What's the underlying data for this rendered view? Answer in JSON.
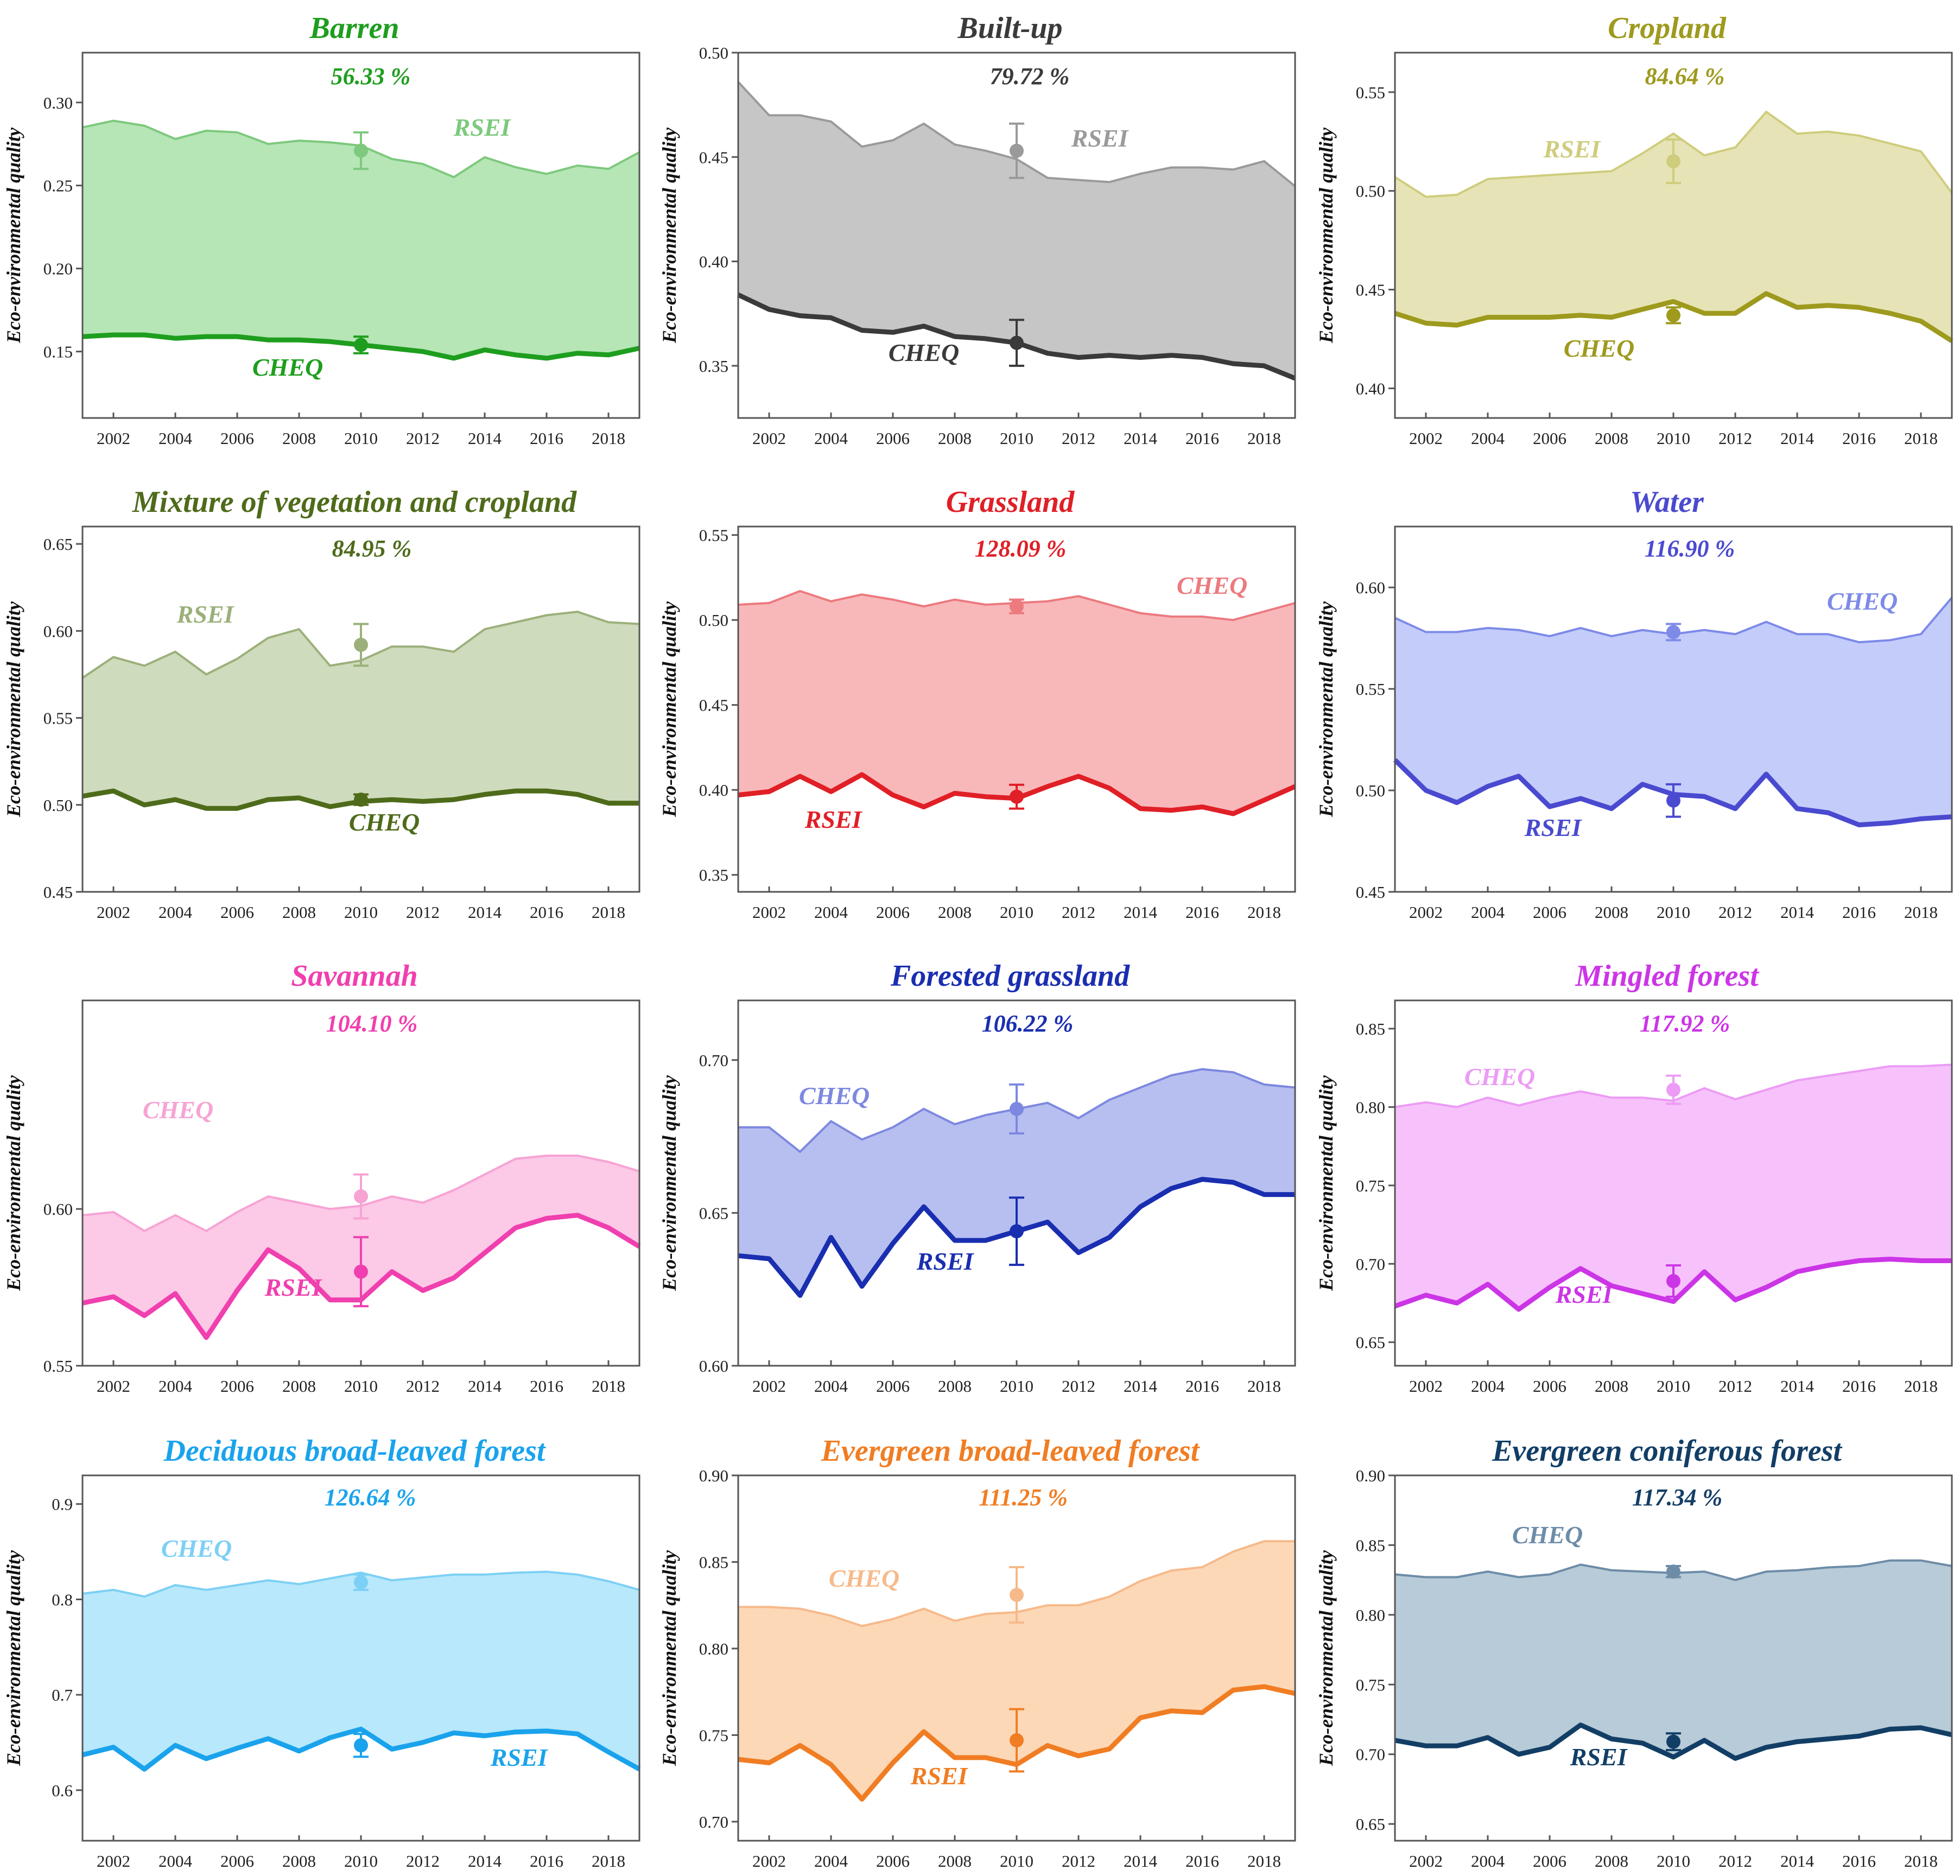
{
  "figure": {
    "ylabel": "Eco-environmental quality",
    "years": [
      2001,
      2002,
      2003,
      2004,
      2005,
      2006,
      2007,
      2008,
      2009,
      2010,
      2011,
      2012,
      2013,
      2014,
      2015,
      2016,
      2017,
      2018,
      2019
    ],
    "x_ticks": [
      "2002",
      "2004",
      "2006",
      "2008",
      "2010",
      "2012",
      "2014",
      "2016",
      "2018"
    ]
  },
  "chart_data": [
    {
      "type": "area",
      "title": "Barren",
      "percent": "56.33 %",
      "color": "#1e9e1e",
      "light": "#7dc97d",
      "fill": "#b6e5b6",
      "ylim": [
        0.11,
        0.33
      ],
      "yticks": [
        "0.15",
        "0.20",
        "0.25",
        "0.30"
      ],
      "series": [
        {
          "name": "RSEI",
          "role": "upper",
          "values": [
            0.285,
            0.289,
            0.286,
            0.278,
            0.283,
            0.282,
            0.275,
            0.277,
            0.276,
            0.274,
            0.266,
            0.263,
            0.255,
            0.267,
            0.261,
            0.257,
            0.262,
            0.26,
            0.27
          ]
        },
        {
          "name": "CHEQ",
          "role": "lower",
          "values": [
            0.159,
            0.16,
            0.16,
            0.158,
            0.159,
            0.159,
            0.157,
            0.157,
            0.156,
            0.154,
            0.152,
            0.15,
            0.146,
            0.151,
            0.148,
            0.146,
            0.149,
            0.148,
            0.152
          ]
        }
      ],
      "markers": [
        {
          "series": "RSEI",
          "year": 2010,
          "mean": 0.271,
          "err": 0.011
        },
        {
          "series": "CHEQ",
          "year": 2010,
          "mean": 0.154,
          "err": 0.005
        }
      ]
    },
    {
      "type": "area",
      "title": "Built-up",
      "percent": "79.72 %",
      "color": "#3a3a3a",
      "light": "#9a9a9a",
      "fill": "#c6c6c6",
      "ylim": [
        0.325,
        0.5
      ],
      "yticks": [
        "0.35",
        "0.40",
        "0.45",
        "0.50"
      ],
      "series": [
        {
          "name": "RSEI",
          "role": "upper",
          "values": [
            0.486,
            0.47,
            0.47,
            0.467,
            0.455,
            0.458,
            0.466,
            0.456,
            0.453,
            0.449,
            0.44,
            0.439,
            0.438,
            0.442,
            0.445,
            0.445,
            0.444,
            0.448,
            0.436
          ]
        },
        {
          "name": "CHEQ",
          "role": "lower",
          "values": [
            0.384,
            0.377,
            0.374,
            0.373,
            0.367,
            0.366,
            0.369,
            0.364,
            0.363,
            0.361,
            0.356,
            0.354,
            0.355,
            0.354,
            0.355,
            0.354,
            0.351,
            0.35,
            0.344
          ]
        }
      ],
      "markers": [
        {
          "series": "RSEI",
          "year": 2010,
          "mean": 0.453,
          "err": 0.013
        },
        {
          "series": "CHEQ",
          "year": 2010,
          "mean": 0.361,
          "err": 0.011
        }
      ]
    },
    {
      "type": "area",
      "title": "Cropland",
      "percent": "84.64 %",
      "color": "#9e9a1e",
      "light": "#cfcc7d",
      "fill": "#e6e4b6",
      "ylim": [
        0.385,
        0.57
      ],
      "yticks": [
        "0.40",
        "0.45",
        "0.50",
        "0.55"
      ],
      "series": [
        {
          "name": "RSEI",
          "role": "upper",
          "values": [
            0.507,
            0.497,
            0.498,
            0.506,
            0.507,
            0.508,
            0.509,
            0.51,
            0.519,
            0.529,
            0.518,
            0.522,
            0.54,
            0.529,
            0.53,
            0.528,
            0.524,
            0.52,
            0.499
          ]
        },
        {
          "name": "CHEQ",
          "role": "lower",
          "values": [
            0.438,
            0.433,
            0.432,
            0.436,
            0.436,
            0.436,
            0.437,
            0.436,
            0.44,
            0.444,
            0.438,
            0.438,
            0.448,
            0.441,
            0.442,
            0.441,
            0.438,
            0.434,
            0.424
          ]
        }
      ],
      "markers": [
        {
          "series": "RSEI",
          "year": 2010,
          "mean": 0.515,
          "err": 0.011
        },
        {
          "series": "CHEQ",
          "year": 2010,
          "mean": 0.437,
          "err": 0.004
        }
      ]
    },
    {
      "type": "area",
      "title": "Mixture of vegetation and cropland",
      "percent": "84.95 %",
      "color": "#4e6b1a",
      "light": "#9bb07a",
      "fill": "#cfdbbd",
      "ylim": [
        0.45,
        0.66
      ],
      "yticks": [
        "0.45",
        "0.50",
        "0.55",
        "0.60",
        "0.65"
      ],
      "series": [
        {
          "name": "RSEI",
          "role": "upper",
          "values": [
            0.573,
            0.585,
            0.58,
            0.588,
            0.575,
            0.584,
            0.596,
            0.601,
            0.58,
            0.583,
            0.591,
            0.591,
            0.588,
            0.601,
            0.605,
            0.609,
            0.611,
            0.605,
            0.604
          ]
        },
        {
          "name": "CHEQ",
          "role": "lower",
          "values": [
            0.505,
            0.508,
            0.5,
            0.503,
            0.498,
            0.498,
            0.503,
            0.504,
            0.499,
            0.502,
            0.503,
            0.502,
            0.503,
            0.506,
            0.508,
            0.508,
            0.506,
            0.501,
            0.501
          ]
        }
      ],
      "markers": [
        {
          "series": "RSEI",
          "year": 2010,
          "mean": 0.592,
          "err": 0.012
        },
        {
          "series": "CHEQ",
          "year": 2010,
          "mean": 0.503,
          "err": 0.003
        }
      ]
    },
    {
      "type": "area",
      "title": "Grassland",
      "percent": "128.09 %",
      "color": "#e01f26",
      "light": "#ec7a7f",
      "fill": "#f8b8ba",
      "ylim": [
        0.34,
        0.555
      ],
      "yticks": [
        "0.35",
        "0.40",
        "0.45",
        "0.50",
        "0.55"
      ],
      "series": [
        {
          "name": "CHEQ",
          "role": "upper",
          "values": [
            0.509,
            0.51,
            0.517,
            0.511,
            0.515,
            0.512,
            0.508,
            0.512,
            0.509,
            0.51,
            0.511,
            0.514,
            0.509,
            0.504,
            0.502,
            0.502,
            0.5,
            0.505,
            0.51
          ]
        },
        {
          "name": "RSEI",
          "role": "lower",
          "values": [
            0.397,
            0.399,
            0.408,
            0.399,
            0.409,
            0.397,
            0.39,
            0.398,
            0.396,
            0.395,
            0.402,
            0.408,
            0.401,
            0.389,
            0.388,
            0.39,
            0.386,
            0.394,
            0.402
          ]
        }
      ],
      "markers": [
        {
          "series": "CHEQ",
          "year": 2010,
          "mean": 0.508,
          "err": 0.004
        },
        {
          "series": "RSEI",
          "year": 2010,
          "mean": 0.396,
          "err": 0.007
        }
      ]
    },
    {
      "type": "area",
      "title": "Water",
      "percent": "116.90 %",
      "color": "#4a4ad0",
      "light": "#7d8ae8",
      "fill": "#c4ccfa",
      "ylim": [
        0.45,
        0.63
      ],
      "yticks": [
        "0.45",
        "0.50",
        "0.55",
        "0.60"
      ],
      "series": [
        {
          "name": "CHEQ",
          "role": "upper",
          "values": [
            0.585,
            0.578,
            0.578,
            0.58,
            0.579,
            0.576,
            0.58,
            0.576,
            0.579,
            0.577,
            0.579,
            0.577,
            0.583,
            0.577,
            0.577,
            0.573,
            0.574,
            0.577,
            0.595
          ]
        },
        {
          "name": "RSEI",
          "role": "lower",
          "values": [
            0.515,
            0.5,
            0.494,
            0.502,
            0.507,
            0.492,
            0.496,
            0.491,
            0.503,
            0.498,
            0.497,
            0.491,
            0.508,
            0.491,
            0.489,
            0.483,
            0.484,
            0.486,
            0.487
          ]
        }
      ],
      "markers": [
        {
          "series": "CHEQ",
          "year": 2010,
          "mean": 0.578,
          "err": 0.004
        },
        {
          "series": "RSEI",
          "year": 2010,
          "mean": 0.495,
          "err": 0.008
        }
      ]
    },
    {
      "type": "area",
      "title": "Savannah",
      "percent": "104.10 %",
      "color": "#f03fae",
      "light": "#f7a3d4",
      "fill": "#fcc9e6",
      "ylim": [
        0.55,
        0.6665
      ],
      "yticks": [
        "0.55",
        "0.60"
      ],
      "series": [
        {
          "name": "CHEQ",
          "role": "upper",
          "values": [
            0.598,
            0.599,
            0.593,
            0.598,
            0.593,
            0.599,
            0.604,
            0.602,
            0.6,
            0.601,
            0.604,
            0.602,
            0.606,
            0.611,
            0.616,
            0.617,
            0.617,
            0.615,
            0.612
          ]
        },
        {
          "name": "RSEI",
          "role": "lower",
          "values": [
            0.57,
            0.572,
            0.566,
            0.573,
            0.559,
            0.574,
            0.587,
            0.581,
            0.571,
            0.571,
            0.58,
            0.574,
            0.578,
            0.586,
            0.594,
            0.597,
            0.598,
            0.594,
            0.588
          ]
        }
      ],
      "markers": [
        {
          "series": "CHEQ",
          "year": 2010,
          "mean": 0.604,
          "err": 0.007
        },
        {
          "series": "RSEI",
          "year": 2010,
          "mean": 0.58,
          "err": 0.011
        }
      ]
    },
    {
      "type": "area",
      "title": "Forested grassland",
      "percent": "106.22 %",
      "color": "#1a2eb0",
      "light": "#7d88e0",
      "fill": "#b7bff0",
      "ylim": [
        0.6,
        0.7195
      ],
      "yticks": [
        "0.60",
        "0.65",
        "0.70"
      ],
      "series": [
        {
          "name": "CHEQ",
          "role": "upper",
          "values": [
            0.678,
            0.678,
            0.67,
            0.68,
            0.674,
            0.678,
            0.684,
            0.679,
            0.682,
            0.684,
            0.686,
            0.681,
            0.687,
            0.691,
            0.695,
            0.697,
            0.696,
            0.692,
            0.691
          ]
        },
        {
          "name": "RSEI",
          "role": "lower",
          "values": [
            0.636,
            0.635,
            0.623,
            0.642,
            0.626,
            0.64,
            0.652,
            0.641,
            0.641,
            0.644,
            0.647,
            0.637,
            0.642,
            0.652,
            0.658,
            0.661,
            0.66,
            0.656,
            0.656
          ]
        }
      ],
      "markers": [
        {
          "series": "CHEQ",
          "year": 2010,
          "mean": 0.684,
          "err": 0.008
        },
        {
          "series": "RSEI",
          "year": 2010,
          "mean": 0.644,
          "err": 0.011
        }
      ]
    },
    {
      "type": "area",
      "title": "Mingled forest",
      "percent": "117.92 %",
      "color": "#cc35e6",
      "light": "#ec9cf5",
      "fill": "#f7c2fb",
      "ylim": [
        0.635,
        0.868
      ],
      "yticks": [
        "0.65",
        "0.70",
        "0.75",
        "0.80",
        "0.85"
      ],
      "series": [
        {
          "name": "CHEQ",
          "role": "upper",
          "values": [
            0.8,
            0.803,
            0.8,
            0.806,
            0.801,
            0.806,
            0.81,
            0.806,
            0.806,
            0.804,
            0.812,
            0.805,
            0.811,
            0.817,
            0.82,
            0.823,
            0.826,
            0.826,
            0.827
          ]
        },
        {
          "name": "RSEI",
          "role": "lower",
          "values": [
            0.673,
            0.68,
            0.675,
            0.687,
            0.671,
            0.685,
            0.697,
            0.686,
            0.681,
            0.676,
            0.695,
            0.677,
            0.685,
            0.695,
            0.699,
            0.702,
            0.703,
            0.702,
            0.702
          ]
        }
      ],
      "markers": [
        {
          "series": "CHEQ",
          "year": 2010,
          "mean": 0.811,
          "err": 0.009
        },
        {
          "series": "RSEI",
          "year": 2010,
          "mean": 0.689,
          "err": 0.01
        }
      ]
    },
    {
      "type": "area",
      "title": "Deciduous broad-leaved forest",
      "percent": "126.64 %",
      "color": "#1aa3ec",
      "light": "#7dd0f5",
      "fill": "#b8e8fb",
      "ylim": [
        0.547,
        0.93
      ],
      "yticks": [
        "0.6",
        "0.7",
        "0.8",
        "0.9"
      ],
      "series": [
        {
          "name": "CHEQ",
          "role": "upper",
          "values": [
            0.806,
            0.81,
            0.803,
            0.815,
            0.81,
            0.815,
            0.82,
            0.816,
            0.822,
            0.828,
            0.82,
            0.823,
            0.826,
            0.826,
            0.828,
            0.829,
            0.826,
            0.819,
            0.81
          ]
        },
        {
          "name": "RSEI",
          "role": "lower",
          "values": [
            0.637,
            0.645,
            0.622,
            0.647,
            0.633,
            0.644,
            0.654,
            0.641,
            0.655,
            0.664,
            0.643,
            0.65,
            0.66,
            0.657,
            0.661,
            0.662,
            0.659,
            0.64,
            0.622
          ]
        }
      ],
      "markers": [
        {
          "series": "CHEQ",
          "year": 2010,
          "mean": 0.818,
          "err": 0.008
        },
        {
          "series": "RSEI",
          "year": 2010,
          "mean": 0.647,
          "err": 0.012
        }
      ]
    },
    {
      "type": "area",
      "title": "Evergreen broad-leaved forest",
      "percent": "111.25 %",
      "color": "#f07d23",
      "light": "#f7b98a",
      "fill": "#fcd8b7",
      "ylim": [
        0.689,
        0.9
      ],
      "yticks": [
        "0.70",
        "0.75",
        "0.80",
        "0.85",
        "0.90"
      ],
      "series": [
        {
          "name": "CHEQ",
          "role": "upper",
          "values": [
            0.824,
            0.824,
            0.823,
            0.819,
            0.813,
            0.817,
            0.823,
            0.816,
            0.82,
            0.821,
            0.825,
            0.825,
            0.83,
            0.839,
            0.845,
            0.847,
            0.856,
            0.862,
            0.862
          ]
        },
        {
          "name": "RSEI",
          "role": "lower",
          "values": [
            0.736,
            0.734,
            0.744,
            0.733,
            0.713,
            0.734,
            0.752,
            0.737,
            0.737,
            0.733,
            0.744,
            0.738,
            0.742,
            0.76,
            0.764,
            0.763,
            0.776,
            0.778,
            0.774
          ]
        }
      ],
      "markers": [
        {
          "series": "CHEQ",
          "year": 2010,
          "mean": 0.831,
          "err": 0.016
        },
        {
          "series": "RSEI",
          "year": 2010,
          "mean": 0.747,
          "err": 0.018
        }
      ]
    },
    {
      "type": "area",
      "title": "Evergreen coniferous forest",
      "percent": "117.34 %",
      "color": "#123e66",
      "light": "#6d8ca8",
      "fill": "#b7cbd8",
      "ylim": [
        0.638,
        0.9
      ],
      "yticks": [
        "0.65",
        "0.70",
        "0.75",
        "0.80",
        "0.85",
        "0.90"
      ],
      "series": [
        {
          "name": "CHEQ",
          "role": "upper",
          "values": [
            0.829,
            0.827,
            0.827,
            0.831,
            0.827,
            0.829,
            0.836,
            0.832,
            0.831,
            0.83,
            0.831,
            0.825,
            0.831,
            0.832,
            0.834,
            0.835,
            0.839,
            0.839,
            0.835
          ]
        },
        {
          "name": "RSEI",
          "role": "lower",
          "values": [
            0.71,
            0.706,
            0.706,
            0.712,
            0.7,
            0.705,
            0.721,
            0.711,
            0.708,
            0.698,
            0.71,
            0.697,
            0.705,
            0.709,
            0.711,
            0.713,
            0.718,
            0.719,
            0.714
          ]
        }
      ],
      "markers": [
        {
          "series": "CHEQ",
          "year": 2010,
          "mean": 0.831,
          "err": 0.004
        },
        {
          "series": "RSEI",
          "year": 2010,
          "mean": 0.709,
          "err": 0.006
        }
      ]
    }
  ]
}
